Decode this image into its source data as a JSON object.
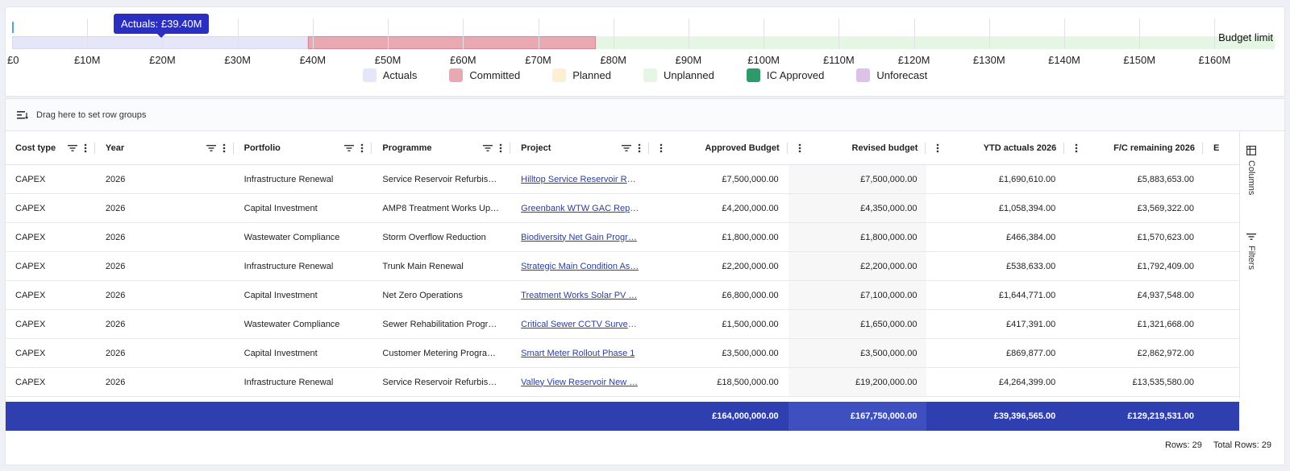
{
  "chart_data": {
    "type": "bar",
    "orientation": "horizontal-stacked",
    "x_ticks": [
      "£0",
      "£10M",
      "£20M",
      "£30M",
      "£40M",
      "£50M",
      "£60M",
      "£70M",
      "£80M",
      "£90M",
      "£100M",
      "£110M",
      "£120M",
      "£130M",
      "£140M",
      "£150M",
      "£160M"
    ],
    "xlim": [
      0,
      168
    ],
    "unit": "£M",
    "series": [
      {
        "name": "Actuals",
        "value": 39.4,
        "color": "#e5e6f8"
      },
      {
        "name": "Committed",
        "value": 38.3,
        "color": "#e8a9b3"
      },
      {
        "name": "Planned",
        "value": 0,
        "color": "#fdefd3"
      },
      {
        "name": "Unplanned",
        "value": 90.05,
        "color": "#e6f6e4"
      },
      {
        "name": "IC Approved",
        "value": 0,
        "color": "#2e9a6a"
      },
      {
        "name": "Unforecast",
        "value": 0,
        "color": "#dcc2e6"
      }
    ],
    "tooltip": "Actuals: £39.40M",
    "budget_label": "Budget limit"
  },
  "group_bar": {
    "label": "Drag here to set row groups"
  },
  "columns": [
    {
      "label": "Cost type",
      "numeric": false,
      "filter": true
    },
    {
      "label": "Year",
      "numeric": false,
      "filter": true
    },
    {
      "label": "Portfolio",
      "numeric": false,
      "filter": true
    },
    {
      "label": "Programme",
      "numeric": false,
      "filter": true
    },
    {
      "label": "Project",
      "numeric": false,
      "filter": true
    },
    {
      "label": "Approved Budget",
      "numeric": true,
      "filter": false
    },
    {
      "label": "Revised budget",
      "numeric": true,
      "filter": false
    },
    {
      "label": "YTD actuals 2026",
      "numeric": true,
      "filter": false
    },
    {
      "label": "F/C remaining 2026",
      "numeric": true,
      "filter": false
    },
    {
      "label": "E",
      "numeric": false,
      "filter": false
    }
  ],
  "rows": [
    [
      "CAPEX",
      "2026",
      "Infrastructure Renewal",
      "Service Reservoir Refurbish…",
      "Hilltop Service Reservoir Re…",
      "£7,500,000.00",
      "£7,500,000.00",
      "£1,690,610.00",
      "£5,883,653.00"
    ],
    [
      "CAPEX",
      "2026",
      "Capital Investment",
      "AMP8 Treatment Works Up…",
      "Greenbank WTW GAC Repl…",
      "£4,200,000.00",
      "£4,350,000.00",
      "£1,058,394.00",
      "£3,569,322.00"
    ],
    [
      "CAPEX",
      "2026",
      "Wastewater Compliance",
      "Storm Overflow Reduction",
      "Biodiversity Net Gain Progr…",
      "£1,800,000.00",
      "£1,800,000.00",
      "£466,384.00",
      "£1,570,623.00"
    ],
    [
      "CAPEX",
      "2026",
      "Infrastructure Renewal",
      "Trunk Main Renewal",
      "Strategic Main Condition As…",
      "£2,200,000.00",
      "£2,200,000.00",
      "£538,633.00",
      "£1,792,409.00"
    ],
    [
      "CAPEX",
      "2026",
      "Capital Investment",
      "Net Zero Operations",
      "Treatment Works Solar PV …",
      "£6,800,000.00",
      "£7,100,000.00",
      "£1,644,771.00",
      "£4,937,548.00"
    ],
    [
      "CAPEX",
      "2026",
      "Wastewater Compliance",
      "Sewer Rehabilitation Progra…",
      "Critical Sewer CCTV Survey…",
      "£1,500,000.00",
      "£1,650,000.00",
      "£417,391.00",
      "£1,321,668.00"
    ],
    [
      "CAPEX",
      "2026",
      "Capital Investment",
      "Customer Metering Progra…",
      "Smart Meter Rollout Phase 1",
      "£3,500,000.00",
      "£3,500,000.00",
      "£869,877.00",
      "£2,862,972.00"
    ],
    [
      "CAPEX",
      "2026",
      "Infrastructure Renewal",
      "Service Reservoir Refurbish…",
      "Valley View Reservoir New …",
      "£18,500,000.00",
      "£19,200,000.00",
      "£4,264,399.00",
      "£13,535,580.00"
    ]
  ],
  "totals": [
    "£164,000,000.00",
    "£167,750,000.00",
    "£39,396,565.00",
    "£129,219,531.00"
  ],
  "side": {
    "columns": "Columns",
    "filters": "Filters"
  },
  "footer": {
    "rows": "Rows: 29",
    "total_rows": "Total Rows: 29"
  }
}
